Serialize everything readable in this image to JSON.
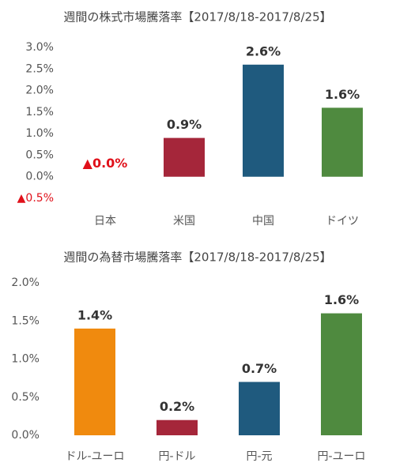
{
  "chart_data": [
    {
      "type": "bar",
      "title": "週間の株式市場騰落率【2017/8/18-2017/8/25】",
      "categories": [
        "日本",
        "米国",
        "中国",
        "ドイツ"
      ],
      "values": [
        0.0,
        0.9,
        2.6,
        1.6
      ],
      "value_labels": [
        "▲0.0%",
        "0.9%",
        "2.6%",
        "1.6%"
      ],
      "value_label_colors": [
        "#e0101a",
        "#333333",
        "#333333",
        "#333333"
      ],
      "colors": [
        "#a5263a",
        "#a5263a",
        "#1f5a7e",
        "#4f8a3f"
      ],
      "ylim": [
        -0.5,
        3.0
      ],
      "yticks": [
        {
          "value": -0.5,
          "label": "▲0.5%"
        },
        {
          "value": 0,
          "label": "0.0%"
        },
        {
          "value": 0.5,
          "label": "0.5%"
        },
        {
          "value": 1.0,
          "label": "1.0%"
        },
        {
          "value": 1.5,
          "label": "1.5%"
        },
        {
          "value": 2.0,
          "label": "2.0%"
        },
        {
          "value": 2.5,
          "label": "2.5%"
        },
        {
          "value": 3.0,
          "label": "3.0%"
        }
      ],
      "negative_tick_color": "#e0101a",
      "grid": false
    },
    {
      "type": "bar",
      "title": "週間の為替市場騰落率【2017/8/18-2017/8/25】",
      "categories": [
        "ドル-ユーロ",
        "円-ドル",
        "円-元",
        "円-ユーロ"
      ],
      "values": [
        1.4,
        0.2,
        0.7,
        1.6
      ],
      "value_labels": [
        "1.4%",
        "0.2%",
        "0.7%",
        "1.6%"
      ],
      "value_label_colors": [
        "#333333",
        "#333333",
        "#333333",
        "#333333"
      ],
      "colors": [
        "#f08a0e",
        "#a5263a",
        "#1f5a7e",
        "#4f8a3f"
      ],
      "ylim": [
        0,
        2.0
      ],
      "yticks": [
        {
          "value": 0,
          "label": "0.0%"
        },
        {
          "value": 0.5,
          "label": "0.5%"
        },
        {
          "value": 1.0,
          "label": "1.0%"
        },
        {
          "value": 1.5,
          "label": "1.5%"
        },
        {
          "value": 2.0,
          "label": "2.0%"
        }
      ],
      "negative_tick_color": "#e0101a",
      "grid": false
    }
  ]
}
